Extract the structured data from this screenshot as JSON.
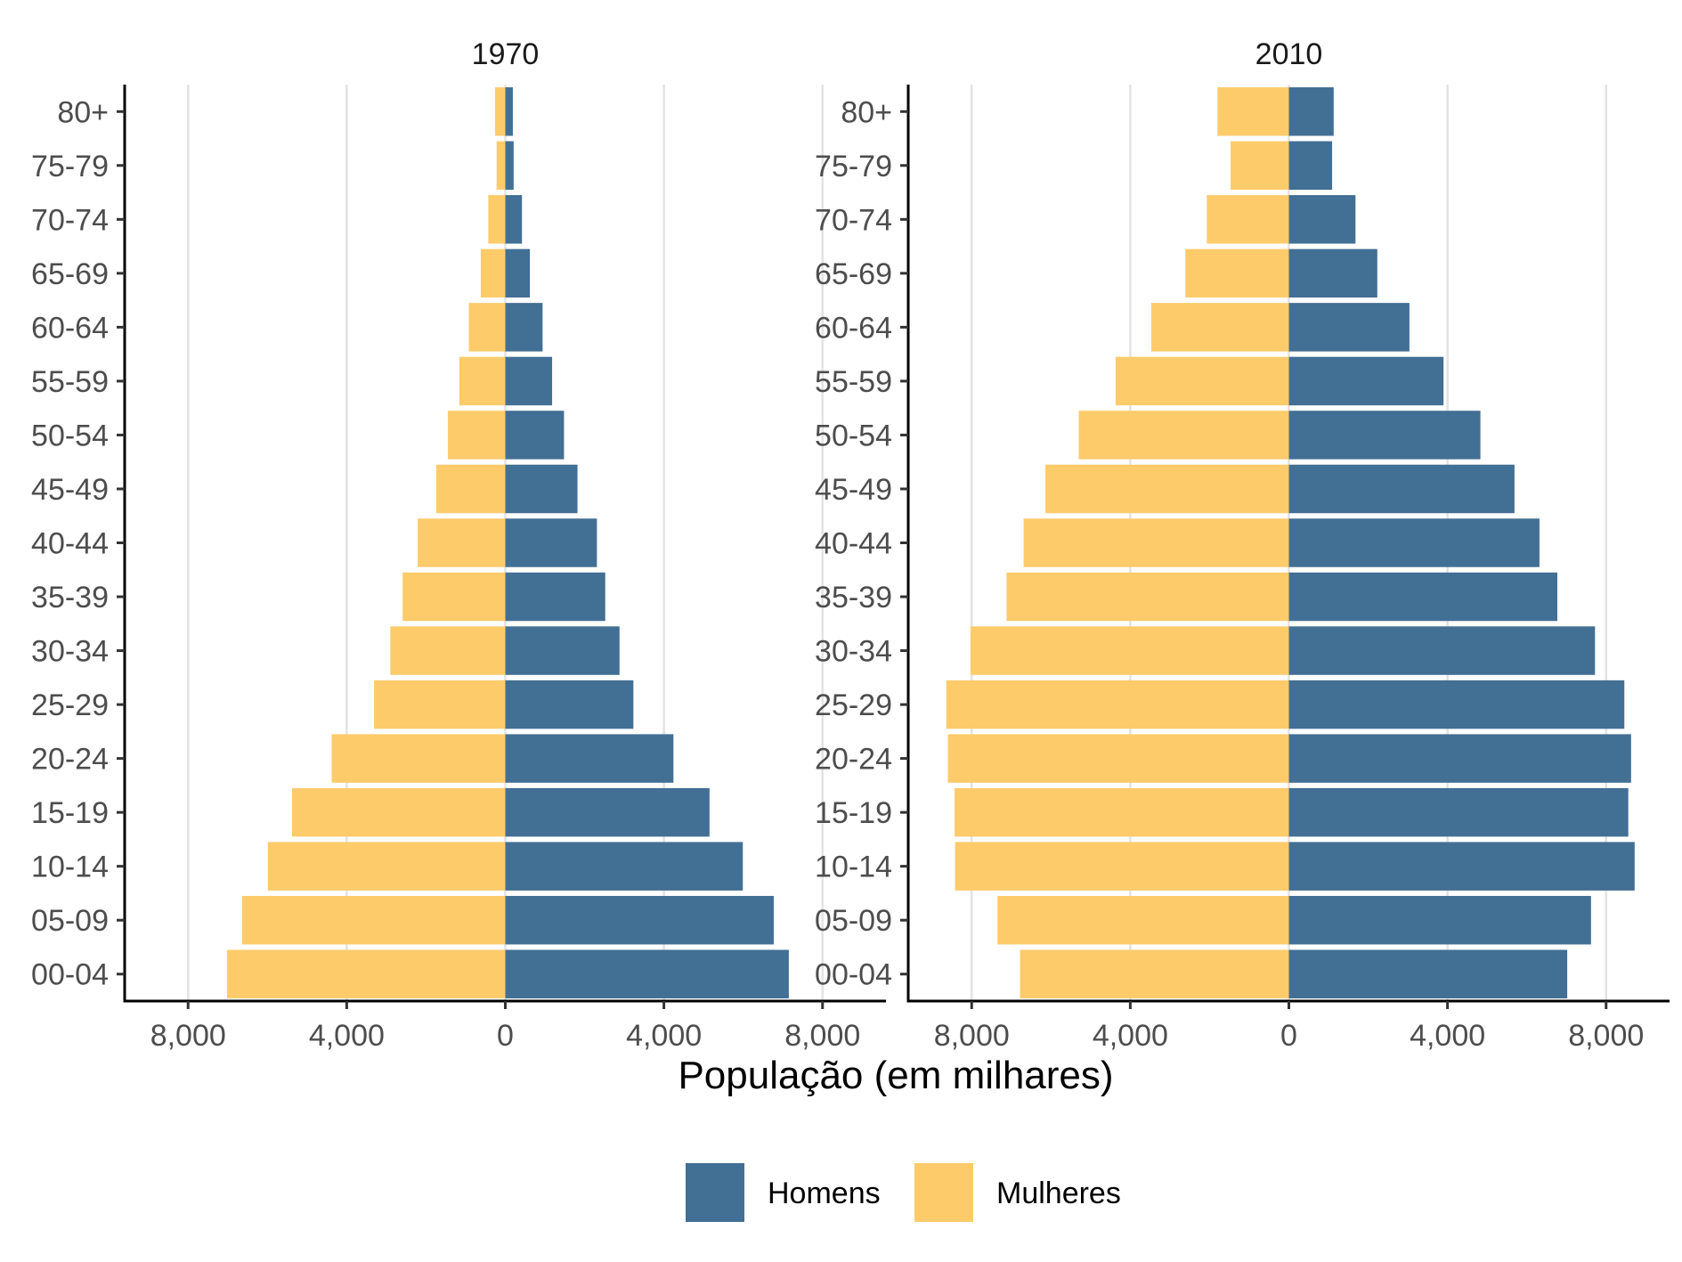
{
  "chart_data": {
    "type": "bar",
    "orientation": "horizontal",
    "subtype": "population-pyramid",
    "xlabel": "População (em milhares)",
    "xlim": [
      -9600,
      9600
    ],
    "x_ticks": [
      -8000,
      -4000,
      0,
      4000,
      8000
    ],
    "x_tick_labels": [
      "8,000",
      "4,000",
      "0",
      "4,000",
      "8,000"
    ],
    "grid": "vertical major lines",
    "legend_position": "bottom",
    "categories": [
      "00-04",
      "05-09",
      "10-14",
      "15-19",
      "20-24",
      "25-29",
      "30-34",
      "35-39",
      "40-44",
      "45-49",
      "50-54",
      "55-59",
      "60-64",
      "65-69",
      "70-74",
      "75-79",
      "80+"
    ],
    "series_names": [
      "Homens",
      "Mulheres"
    ],
    "colors": {
      "Homens": "#426f94",
      "Mulheres": "#fecb6b"
    },
    "panels": [
      {
        "title": "1970",
        "series": [
          {
            "name": "Homens",
            "values": [
              7150,
              6770,
              5990,
              5150,
              4240,
              3230,
              2880,
              2520,
              2310,
              1820,
              1480,
              1180,
              940,
              620,
              420,
              210,
              190
            ]
          },
          {
            "name": "Mulheres",
            "values": [
              7020,
              6640,
              5990,
              5380,
              4380,
              3310,
              2900,
              2590,
              2210,
              1740,
              1450,
              1160,
              920,
              620,
              430,
              220,
              260
            ]
          }
        ]
      },
      {
        "title": "2010",
        "series": [
          {
            "name": "Homens",
            "values": [
              7020,
              7620,
              8720,
              8560,
              8630,
              8460,
              7720,
              6770,
              6320,
              5690,
              4830,
              3900,
              3040,
              2230,
              1680,
              1090,
              1130
            ]
          },
          {
            "name": "Mulheres",
            "values": [
              6780,
              7350,
              8420,
              8430,
              8600,
              8640,
              8030,
              7120,
              6690,
              6140,
              5300,
              4370,
              3470,
              2610,
              2070,
              1470,
              1800
            ]
          }
        ]
      }
    ]
  }
}
